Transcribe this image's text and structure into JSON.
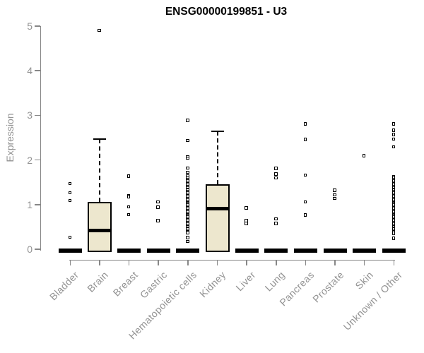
{
  "chart_data": {
    "type": "boxplot",
    "title": "ENSG00000199851 - U3",
    "ylabel": "Expression",
    "ylim": [
      0,
      5
    ],
    "yticks": [
      0,
      1,
      2,
      3,
      4,
      5
    ],
    "grid": false,
    "box_fill_color": "#EDE7CE",
    "axis_color": "#878787",
    "axis_text_color": "#929292",
    "categories": [
      "Bladder",
      "Brain",
      "Breast",
      "Gastric",
      "Hematopoietic cells",
      "Kidney",
      "Liver",
      "Lung",
      "Pancreas",
      "Prostate",
      "Skin",
      "Unknown / Other"
    ],
    "boxes": [
      {
        "category": "Bladder",
        "q1": 0,
        "median": 0,
        "q3": 0,
        "whisker_low": 0,
        "whisker_high": 0,
        "outliers": [
          1.46,
          1.26,
          1.08,
          0.26
        ]
      },
      {
        "category": "Brain",
        "q1": 0,
        "median": 0.42,
        "q3": 1.06,
        "whisker_low": 0,
        "whisker_high": 2.47,
        "outliers": [
          4.9
        ]
      },
      {
        "category": "Breast",
        "q1": 0,
        "median": 0,
        "q3": 0,
        "whisker_low": 0,
        "whisker_high": 0,
        "outliers": [
          1.63,
          1.19,
          1.17,
          0.94,
          0.77
        ]
      },
      {
        "category": "Gastric",
        "q1": 0,
        "median": 0,
        "q3": 0,
        "whisker_low": 0,
        "whisker_high": 0,
        "outliers": [
          1.05,
          0.93,
          0.63
        ]
      },
      {
        "category": "Hematopoietic cells",
        "q1": 0,
        "median": 0,
        "q3": 0,
        "whisker_low": 0,
        "whisker_high": 0,
        "outliers": [
          2.88,
          2.43,
          2.06,
          2.03,
          1.81,
          1.72,
          1.64,
          1.59,
          1.55,
          1.52,
          1.49,
          1.46,
          1.43,
          1.4,
          1.37,
          1.34,
          1.31,
          1.28,
          1.25,
          1.22,
          1.19,
          1.16,
          1.13,
          1.1,
          1.07,
          1.04,
          1.01,
          0.98,
          0.95,
          0.92,
          0.89,
          0.86,
          0.83,
          0.8,
          0.77,
          0.74,
          0.71,
          0.68,
          0.65,
          0.62,
          0.59,
          0.56,
          0.53,
          0.5,
          0.47,
          0.44,
          0.41,
          0.38,
          0.36,
          0.25,
          0.17
        ]
      },
      {
        "category": "Kidney",
        "q1": 0,
        "median": 0.91,
        "q3": 1.46,
        "whisker_low": 0,
        "whisker_high": 2.64,
        "outliers": []
      },
      {
        "category": "Liver",
        "q1": 0,
        "median": 0,
        "q3": 0,
        "whisker_low": 0,
        "whisker_high": 0,
        "outliers": [
          0.92,
          0.63,
          0.57
        ]
      },
      {
        "category": "Lung",
        "q1": 0,
        "median": 0,
        "q3": 0,
        "whisker_low": 0,
        "whisker_high": 0,
        "outliers": [
          1.8,
          1.68,
          1.59,
          0.67,
          0.57
        ]
      },
      {
        "category": "Pancreas",
        "q1": 0,
        "median": 0,
        "q3": 0,
        "whisker_low": 0,
        "whisker_high": 0,
        "outliers": [
          2.8,
          2.45,
          1.65,
          1.05,
          0.76
        ]
      },
      {
        "category": "Prostate",
        "q1": 0,
        "median": 0,
        "q3": 0,
        "whisker_low": 0,
        "whisker_high": 0,
        "outliers": [
          1.31,
          1.21,
          1.13
        ]
      },
      {
        "category": "Skin",
        "q1": 0,
        "median": 0,
        "q3": 0,
        "whisker_low": 0,
        "whisker_high": 0,
        "outliers": [
          2.09
        ]
      },
      {
        "category": "Unknown / Other",
        "q1": 0,
        "median": 0,
        "q3": 0,
        "whisker_low": 0,
        "whisker_high": 0,
        "outliers": [
          2.8,
          2.66,
          2.56,
          2.46,
          2.29,
          1.61,
          1.58,
          1.55,
          1.52,
          1.49,
          1.46,
          1.43,
          1.4,
          1.37,
          1.34,
          1.31,
          1.28,
          1.25,
          1.22,
          1.19,
          1.16,
          1.13,
          1.1,
          1.07,
          1.04,
          1.01,
          0.98,
          0.95,
          0.92,
          0.89,
          0.86,
          0.83,
          0.8,
          0.77,
          0.74,
          0.71,
          0.68,
          0.65,
          0.62,
          0.59,
          0.56,
          0.53,
          0.5,
          0.47,
          0.44,
          0.41,
          0.38,
          0.35,
          0.24
        ]
      }
    ]
  }
}
